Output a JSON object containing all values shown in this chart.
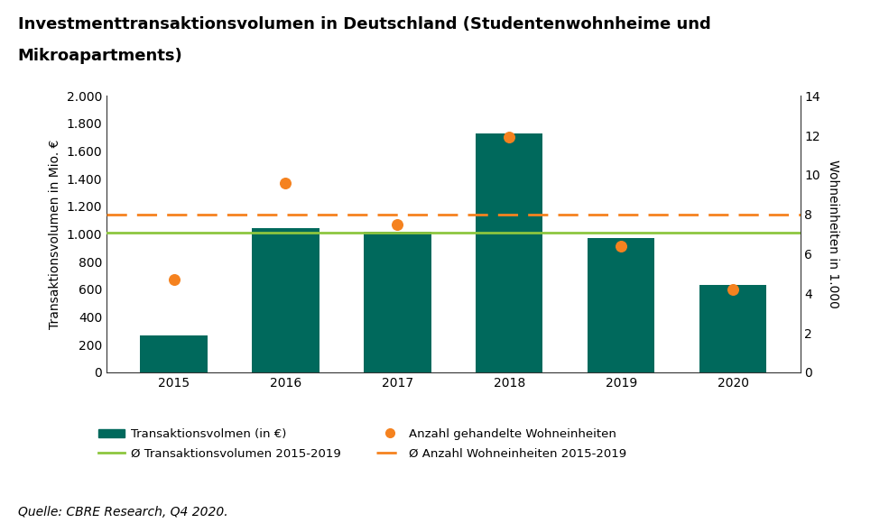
{
  "years": [
    2015,
    2016,
    2017,
    2018,
    2019,
    2020
  ],
  "bar_values": [
    270,
    1040,
    1020,
    1730,
    970,
    635
  ],
  "dot_values": [
    4.7,
    9.6,
    7.5,
    11.9,
    6.4,
    4.2
  ],
  "bar_color": "#00695c",
  "dot_color": "#f5821f",
  "avg_transaction_line": 1010,
  "avg_transaction_line_color": "#8dc63f",
  "avg_units_line": 8.0,
  "avg_units_line_color": "#f5821f",
  "title_line1": "Investmenttransaktionsvolumen in Deutschland (Studentenwohnheime und",
  "title_line2": "Mikroapartments)",
  "ylabel_left": "Transaktionsvolumen in Mio. €",
  "ylabel_right": "Wohneinheiten in 1.000",
  "ylim_left": [
    0,
    2000
  ],
  "ylim_right": [
    0,
    14
  ],
  "yticks_left": [
    0,
    200,
    400,
    600,
    800,
    1000,
    1200,
    1400,
    1600,
    1800,
    2000
  ],
  "ytick_labels_left": [
    "0",
    "200",
    "400",
    "600",
    "800",
    "1.000",
    "1.200",
    "1.400",
    "1.600",
    "1.800",
    "2.000"
  ],
  "yticks_right": [
    0,
    2,
    4,
    6,
    8,
    10,
    12,
    14
  ],
  "legend_row1": [
    {
      "label": "Transaktionsvolmen (in €)",
      "type": "bar",
      "color": "#00695c"
    },
    {
      "label": "Ø Transaktionsvolumen 2015-2019",
      "type": "line",
      "color": "#8dc63f"
    }
  ],
  "legend_row2": [
    {
      "label": "Anzahl gehandelte Wohneinheiten",
      "type": "dot",
      "color": "#f5821f"
    },
    {
      "label": "Ø Anzahl Wohneinheiten 2015-2019",
      "type": "dashed",
      "color": "#f5821f"
    }
  ],
  "footnote": "Quelle: CBRE Research, Q4 2020.",
  "background_color": "#ffffff",
  "title_fontsize": 13,
  "axis_fontsize": 10,
  "tick_fontsize": 10,
  "footnote_fontsize": 10
}
